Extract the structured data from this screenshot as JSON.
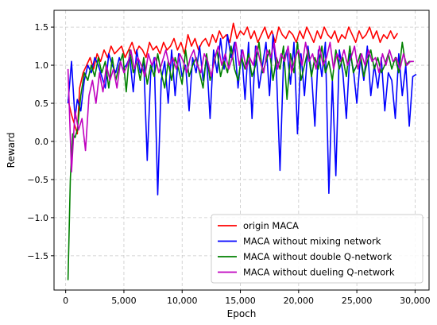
{
  "chart_data": {
    "type": "line",
    "xlabel": "Epoch",
    "ylabel": "Reward",
    "xlim": [
      -1000,
      31200
    ],
    "ylim": [
      -1.95,
      1.72
    ],
    "xticks": [
      0,
      5000,
      10000,
      15000,
      20000,
      25000,
      30000
    ],
    "xtick_labels": [
      "0",
      "5,000",
      "10,000",
      "15,000",
      "20,000",
      "25,000",
      "30,000"
    ],
    "yticks": [
      -1.5,
      -1.0,
      -0.5,
      0.0,
      0.5,
      1.0,
      1.5
    ],
    "ytick_labels": [
      "−1.5",
      "−1.0",
      "−0.5",
      "0.0",
      "0.5",
      "1.0",
      "1.5"
    ],
    "grid": true,
    "legend_position": "lower right",
    "series": [
      {
        "name": "origin MACA",
        "color": "#ff0000",
        "x": [
          200,
          500,
          800,
          1000,
          1200,
          1500,
          1800,
          2100,
          2400,
          2700,
          3000,
          3300,
          3600,
          3900,
          4200,
          4500,
          4800,
          5100,
          5400,
          5700,
          6000,
          6300,
          6600,
          6900,
          7200,
          7500,
          7800,
          8100,
          8400,
          8700,
          9000,
          9300,
          9600,
          9900,
          10200,
          10500,
          10800,
          11100,
          11400,
          11700,
          12000,
          12300,
          12600,
          12900,
          13200,
          13500,
          13800,
          14100,
          14400,
          14700,
          15000,
          15300,
          15600,
          15900,
          16200,
          16500,
          16800,
          17100,
          17400,
          17700,
          18000,
          18300,
          18600,
          18900,
          19200,
          19500,
          19800,
          20100,
          20400,
          20700,
          21000,
          21300,
          21600,
          21900,
          22200,
          22500,
          22800,
          23100,
          23400,
          23700,
          24000,
          24300,
          24600,
          24900,
          25200,
          25500,
          25800,
          26100,
          26400,
          26700,
          27000,
          27300,
          27600,
          27900,
          28200,
          28500
        ],
        "values": [
          0.55,
          0.35,
          0.2,
          0.1,
          0.7,
          0.9,
          1.0,
          1.1,
          0.95,
          1.15,
          1.05,
          1.2,
          1.1,
          1.25,
          1.15,
          1.2,
          1.25,
          1.1,
          1.2,
          1.3,
          1.15,
          1.25,
          1.2,
          1.1,
          1.3,
          1.2,
          1.25,
          1.15,
          1.3,
          1.2,
          1.25,
          1.35,
          1.2,
          1.3,
          1.15,
          1.4,
          1.25,
          1.35,
          1.2,
          1.3,
          1.35,
          1.25,
          1.4,
          1.3,
          1.45,
          1.35,
          1.4,
          1.3,
          1.55,
          1.35,
          1.45,
          1.4,
          1.5,
          1.35,
          1.45,
          1.3,
          1.4,
          1.5,
          1.35,
          1.45,
          1.3,
          1.5,
          1.4,
          1.35,
          1.45,
          1.4,
          1.3,
          1.45,
          1.35,
          1.5,
          1.4,
          1.3,
          1.45,
          1.35,
          1.5,
          1.4,
          1.35,
          1.45,
          1.3,
          1.4,
          1.35,
          1.5,
          1.4,
          1.3,
          1.45,
          1.35,
          1.4,
          1.5,
          1.35,
          1.45,
          1.3,
          1.4,
          1.35,
          1.45,
          1.35,
          1.42
        ]
      },
      {
        "name": "MACA without mixing network",
        "color": "#0000ff",
        "x": [
          200,
          500,
          800,
          1000,
          1300,
          1600,
          1900,
          2200,
          2500,
          2800,
          3100,
          3400,
          3700,
          4000,
          4300,
          4600,
          4900,
          5200,
          5500,
          5800,
          6100,
          6400,
          6700,
          7000,
          7300,
          7600,
          7900,
          8200,
          8500,
          8800,
          9100,
          9400,
          9700,
          10000,
          10300,
          10600,
          10900,
          11200,
          11500,
          11800,
          12100,
          12400,
          12700,
          13000,
          13300,
          13600,
          13900,
          14200,
          14500,
          14800,
          15100,
          15400,
          15700,
          16000,
          16300,
          16600,
          16900,
          17200,
          17500,
          17800,
          18100,
          18400,
          18700,
          19000,
          19300,
          19600,
          19900,
          20200,
          20500,
          20800,
          21100,
          21400,
          21700,
          22000,
          22300,
          22600,
          22900,
          23200,
          23500,
          23800,
          24100,
          24400,
          24700,
          25000,
          25300,
          25600,
          25900,
          26200,
          26500,
          26800,
          27100,
          27400,
          27700,
          28000,
          28300,
          28600,
          28900,
          29200,
          29500,
          29800,
          30100
        ],
        "values": [
          0.5,
          1.05,
          0.3,
          0.55,
          0.4,
          0.8,
          1.0,
          0.9,
          1.1,
          1.0,
          0.85,
          0.7,
          1.15,
          1.0,
          0.9,
          1.1,
          0.95,
          1.0,
          1.1,
          0.65,
          1.2,
          0.9,
          1.05,
          -0.25,
          0.9,
          1.1,
          -0.7,
          0.8,
          1.05,
          0.5,
          1.2,
          0.6,
          1.15,
          0.85,
          1.0,
          0.4,
          1.1,
          0.9,
          1.25,
          0.8,
          1.1,
          0.3,
          1.2,
          0.9,
          1.35,
          0.95,
          1.4,
          1.1,
          1.3,
          0.7,
          1.2,
          0.55,
          1.3,
          0.3,
          1.25,
          0.7,
          1.0,
          1.3,
          0.6,
          1.4,
          0.9,
          -0.38,
          1.05,
          1.2,
          0.75,
          1.3,
          0.1,
          1.15,
          0.6,
          1.25,
          0.9,
          0.2,
          1.2,
          0.85,
          1.3,
          -0.68,
          0.8,
          -0.45,
          1.2,
          0.9,
          0.3,
          1.15,
          0.95,
          0.5,
          1.1,
          0.8,
          1.25,
          0.6,
          1.0,
          0.7,
          1.1,
          0.4,
          0.9,
          0.8,
          0.3,
          1.15,
          0.6,
          1.0,
          0.2,
          0.85,
          0.88
        ]
      },
      {
        "name": "MACA without double Q-network",
        "color": "#008000",
        "x": [
          200,
          400,
          600,
          800,
          1000,
          1300,
          1600,
          1900,
          2200,
          2500,
          2800,
          3100,
          3400,
          3700,
          4000,
          4300,
          4600,
          4900,
          5200,
          5500,
          5800,
          6100,
          6400,
          6700,
          7000,
          7300,
          7600,
          7900,
          8200,
          8500,
          8800,
          9100,
          9400,
          9700,
          10000,
          10300,
          10600,
          10900,
          11200,
          11500,
          11800,
          12100,
          12400,
          12700,
          13000,
          13300,
          13600,
          13900,
          14200,
          14500,
          14800,
          15100,
          15400,
          15700,
          16000,
          16300,
          16600,
          16900,
          17200,
          17500,
          17800,
          18100,
          18400,
          18700,
          19000,
          19300,
          19600,
          19900,
          20200,
          20500,
          20800,
          21100,
          21400,
          21700,
          22000,
          22300,
          22600,
          22900,
          23200,
          23500,
          23800,
          24100,
          24400,
          24700,
          25000,
          25300,
          25600,
          25900,
          26200,
          26500,
          26800,
          27100,
          27400,
          27700,
          28000,
          28300,
          28600,
          28900,
          29200,
          29500,
          29800
        ],
        "values": [
          -1.82,
          -0.5,
          0.1,
          0.05,
          0.15,
          0.6,
          0.9,
          0.8,
          1.0,
          0.85,
          1.1,
          0.9,
          1.05,
          0.7,
          1.1,
          0.8,
          1.0,
          1.15,
          0.65,
          1.2,
          0.9,
          1.05,
          0.8,
          1.1,
          0.75,
          1.0,
          0.85,
          1.15,
          0.9,
          0.7,
          1.05,
          0.8,
          1.1,
          0.95,
          0.75,
          1.2,
          0.85,
          1.0,
          1.1,
          0.9,
          0.7,
          1.15,
          0.8,
          1.0,
          1.2,
          0.85,
          1.05,
          0.9,
          1.25,
          0.95,
          0.8,
          1.1,
          0.95,
          1.15,
          0.85,
          1.0,
          1.3,
          0.9,
          1.05,
          1.2,
          0.8,
          1.1,
          0.95,
          1.25,
          0.55,
          1.15,
          0.9,
          1.3,
          0.8,
          1.0,
          1.2,
          0.85,
          1.1,
          0.95,
          1.25,
          0.9,
          1.05,
          0.8,
          1.2,
          0.95,
          1.1,
          0.85,
          1.25,
          0.9,
          1.0,
          1.15,
          0.85,
          1.05,
          1.2,
          0.95,
          1.1,
          0.9,
          1.0,
          1.15,
          0.95,
          1.1,
          0.9,
          1.3,
          1.0,
          1.05,
          1.05
        ]
      },
      {
        "name": "MACA without dueling Q-network",
        "color": "#bf00bf",
        "x": [
          200,
          500,
          800,
          1100,
          1400,
          1700,
          2000,
          2300,
          2600,
          2900,
          3200,
          3500,
          3800,
          4100,
          4400,
          4700,
          5000,
          5300,
          5600,
          5900,
          6200,
          6500,
          6800,
          7100,
          7400,
          7700,
          8000,
          8300,
          8600,
          8900,
          9200,
          9500,
          9800,
          10100,
          10400,
          10700,
          11000,
          11300,
          11600,
          11900,
          12200,
          12500,
          12800,
          13100,
          13400,
          13700,
          14000,
          14300,
          14600,
          14900,
          15200,
          15500,
          15800,
          16100,
          16400,
          16700,
          17000,
          17300,
          17600,
          17900,
          18200,
          18500,
          18800,
          19100,
          19400,
          19700,
          20000,
          20300,
          20600,
          20900,
          21200,
          21500,
          21800,
          22100,
          22400,
          22700,
          23000,
          23300,
          23600,
          23900,
          24200,
          24500,
          24800,
          25100,
          25400,
          25700,
          26000,
          26300,
          26600,
          26900,
          27200,
          27500,
          27800,
          28100,
          28400,
          28700,
          29000,
          29300,
          29600,
          29900
        ],
        "values": [
          0.95,
          -0.4,
          0.4,
          0.15,
          0.3,
          -0.12,
          0.6,
          0.8,
          0.5,
          0.9,
          0.65,
          1.0,
          0.8,
          0.95,
          0.7,
          1.05,
          0.9,
          1.0,
          1.2,
          0.95,
          1.1,
          1.0,
          0.85,
          1.15,
          1.0,
          1.1,
          0.9,
          1.05,
          1.2,
          1.0,
          1.1,
          0.95,
          1.15,
          1.05,
          0.9,
          1.1,
          1.2,
          1.0,
          0.9,
          1.15,
          1.05,
          0.85,
          1.1,
          1.25,
          1.0,
          1.15,
          0.95,
          1.1,
          1.3,
          1.0,
          1.2,
          0.95,
          1.1,
          1.0,
          1.25,
          1.05,
          0.9,
          1.2,
          1.1,
          1.3,
          0.95,
          1.15,
          1.05,
          1.25,
          0.9,
          1.1,
          1.2,
          1.0,
          1.3,
          1.05,
          1.15,
          0.95,
          1.25,
          1.0,
          1.1,
          1.3,
          0.95,
          1.15,
          1.05,
          1.2,
          1.0,
          1.1,
          1.25,
          0.95,
          1.15,
          1.0,
          1.2,
          1.05,
          1.1,
          0.9,
          1.15,
          1.0,
          1.2,
          1.05,
          1.1,
          0.95,
          1.15,
          1.0,
          1.05,
          1.05
        ]
      }
    ]
  }
}
